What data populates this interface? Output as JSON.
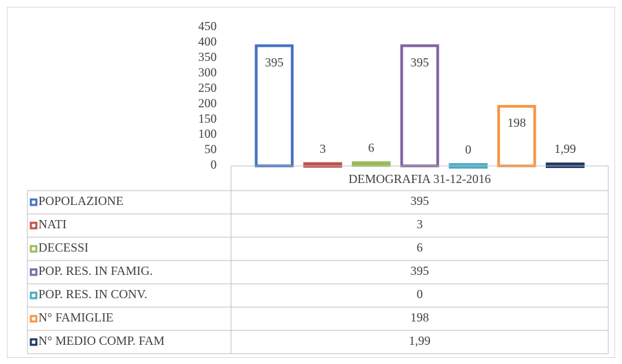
{
  "chart_data": {
    "type": "bar",
    "categories": [
      "DEMOGRAFIA 31-12-2016"
    ],
    "series": [
      {
        "name": "POPOLAZIONE",
        "color": "#4472c4",
        "values": [
          395
        ]
      },
      {
        "name": "NATI",
        "color": "#c0504d",
        "values": [
          3
        ]
      },
      {
        "name": "DECESSI",
        "color": "#9bbb59",
        "values": [
          6
        ]
      },
      {
        "name": "POP. RES. IN FAMIG.",
        "color": "#8064a2",
        "values": [
          395
        ]
      },
      {
        "name": "POP. RES. IN CONV.",
        "color": "#4bacc6",
        "values": [
          0
        ]
      },
      {
        "name": "N° FAMIGLIE",
        "color": "#f79646",
        "values": [
          198
        ]
      },
      {
        "name": "N° MEDIO COMP. FAM",
        "color": "#1f3864",
        "values": [
          1.99
        ],
        "value_labels": [
          "1,99"
        ]
      }
    ],
    "ylim": [
      0,
      450
    ],
    "yticks": [
      0,
      50,
      100,
      150,
      200,
      250,
      300,
      350,
      400,
      450
    ],
    "grid": false
  }
}
